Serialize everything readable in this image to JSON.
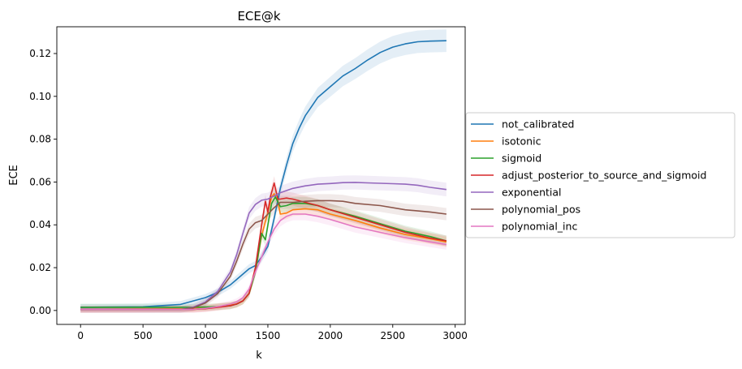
{
  "chart_data": {
    "type": "line",
    "title": "ECE@k",
    "xlabel": "k",
    "ylabel": "ECE",
    "xlim": [
      -190,
      3080
    ],
    "ylim": [
      -0.0065,
      0.1325
    ],
    "xticks": [
      0,
      500,
      1000,
      1500,
      2000,
      2500,
      3000
    ],
    "xtick_labels": [
      "0",
      "500",
      "1000",
      "1500",
      "2000",
      "2500",
      "3000"
    ],
    "yticks": [
      0.0,
      0.02,
      0.04,
      0.06,
      0.08,
      0.1,
      0.12
    ],
    "ytick_labels": [
      "0.00",
      "0.02",
      "0.04",
      "0.06",
      "0.08",
      "0.10",
      "0.12"
    ],
    "grid": false,
    "legend_position": "center-right outside",
    "series": [
      {
        "name": "not_calibrated",
        "color": "#1f77b4",
        "x": [
          0,
          500,
          800,
          1000,
          1100,
          1200,
          1250,
          1300,
          1350,
          1400,
          1450,
          1500,
          1550,
          1600,
          1650,
          1700,
          1750,
          1800,
          1900,
          2000,
          2100,
          2200,
          2300,
          2400,
          2500,
          2600,
          2700,
          2800,
          2930
        ],
        "y": [
          0.0015,
          0.0017,
          0.0028,
          0.006,
          0.0085,
          0.012,
          0.0145,
          0.017,
          0.0195,
          0.021,
          0.025,
          0.03,
          0.043,
          0.057,
          0.068,
          0.078,
          0.085,
          0.091,
          0.0995,
          0.1045,
          0.1095,
          0.113,
          0.117,
          0.1205,
          0.123,
          0.1245,
          0.1255,
          0.1258,
          0.126
        ]
      },
      {
        "name": "isotonic",
        "color": "#ff7f0e",
        "x": [
          0,
          900,
          1000,
          1100,
          1200,
          1250,
          1300,
          1350,
          1400,
          1450,
          1500,
          1530,
          1550,
          1580,
          1600,
          1650,
          1700,
          1800,
          1900,
          2000,
          2200,
          2400,
          2600,
          2800,
          2930
        ],
        "y": [
          0.0005,
          0.0008,
          0.0012,
          0.0018,
          0.0025,
          0.003,
          0.0045,
          0.008,
          0.018,
          0.035,
          0.046,
          0.053,
          0.0545,
          0.051,
          0.045,
          0.0455,
          0.047,
          0.0475,
          0.047,
          0.045,
          0.042,
          0.0385,
          0.0355,
          0.0335,
          0.032
        ]
      },
      {
        "name": "sigmoid",
        "color": "#2ca02c",
        "x": [
          0,
          900,
          1000,
          1100,
          1200,
          1250,
          1300,
          1350,
          1400,
          1450,
          1480,
          1500,
          1530,
          1560,
          1600,
          1650,
          1700,
          1800,
          1900,
          2000,
          2200,
          2400,
          2600,
          2800,
          2930
        ],
        "y": [
          0.0015,
          0.0015,
          0.0016,
          0.0018,
          0.0022,
          0.003,
          0.0045,
          0.008,
          0.018,
          0.036,
          0.033,
          0.04,
          0.05,
          0.053,
          0.0485,
          0.049,
          0.05,
          0.05,
          0.049,
          0.047,
          0.044,
          0.0405,
          0.037,
          0.0345,
          0.0325
        ]
      },
      {
        "name": "adjust_posterior_to_source_and_sigmoid",
        "color": "#d62728",
        "x": [
          0,
          900,
          1000,
          1100,
          1200,
          1250,
          1300,
          1350,
          1400,
          1450,
          1480,
          1500,
          1520,
          1550,
          1580,
          1600,
          1650,
          1700,
          1800,
          1900,
          2000,
          2200,
          2400,
          2600,
          2800,
          2930
        ],
        "y": [
          0.0005,
          0.0005,
          0.0008,
          0.0015,
          0.0022,
          0.003,
          0.0045,
          0.008,
          0.02,
          0.04,
          0.051,
          0.046,
          0.053,
          0.0595,
          0.052,
          0.052,
          0.0525,
          0.052,
          0.0505,
          0.049,
          0.047,
          0.0435,
          0.04,
          0.0365,
          0.0338,
          0.0325
        ]
      },
      {
        "name": "exponential",
        "color": "#9467bd",
        "x": [
          0,
          800,
          900,
          1000,
          1100,
          1200,
          1250,
          1300,
          1350,
          1400,
          1450,
          1500,
          1550,
          1600,
          1700,
          1800,
          1900,
          2000,
          2100,
          2200,
          2300,
          2400,
          2500,
          2600,
          2700,
          2800,
          2930
        ],
        "y": [
          0.0005,
          0.0005,
          0.0015,
          0.004,
          0.009,
          0.018,
          0.026,
          0.036,
          0.0455,
          0.0495,
          0.0515,
          0.052,
          0.0535,
          0.055,
          0.057,
          0.0582,
          0.059,
          0.0593,
          0.0597,
          0.0598,
          0.0596,
          0.0594,
          0.0592,
          0.059,
          0.0585,
          0.0575,
          0.0565
        ]
      },
      {
        "name": "polynomial_pos",
        "color": "#8c564b",
        "x": [
          0,
          800,
          900,
          1000,
          1100,
          1200,
          1250,
          1300,
          1350,
          1400,
          1450,
          1500,
          1550,
          1600,
          1700,
          1800,
          1900,
          2000,
          2100,
          2200,
          2400,
          2600,
          2800,
          2930
        ],
        "y": [
          0.0005,
          0.0005,
          0.0012,
          0.0035,
          0.008,
          0.016,
          0.023,
          0.031,
          0.038,
          0.041,
          0.042,
          0.045,
          0.048,
          0.0505,
          0.0505,
          0.051,
          0.0513,
          0.0513,
          0.051,
          0.05,
          0.049,
          0.047,
          0.046,
          0.045
        ]
      },
      {
        "name": "polynomial_inc",
        "color": "#e377c2",
        "x": [
          0,
          900,
          1000,
          1100,
          1200,
          1250,
          1300,
          1350,
          1400,
          1450,
          1500,
          1550,
          1600,
          1650,
          1700,
          1800,
          1900,
          2000,
          2200,
          2400,
          2600,
          2800,
          2930
        ],
        "y": [
          0.0005,
          0.0005,
          0.001,
          0.0018,
          0.003,
          0.004,
          0.006,
          0.01,
          0.018,
          0.025,
          0.032,
          0.038,
          0.042,
          0.044,
          0.045,
          0.045,
          0.044,
          0.0425,
          0.039,
          0.0365,
          0.034,
          0.032,
          0.0308
        ]
      }
    ]
  }
}
